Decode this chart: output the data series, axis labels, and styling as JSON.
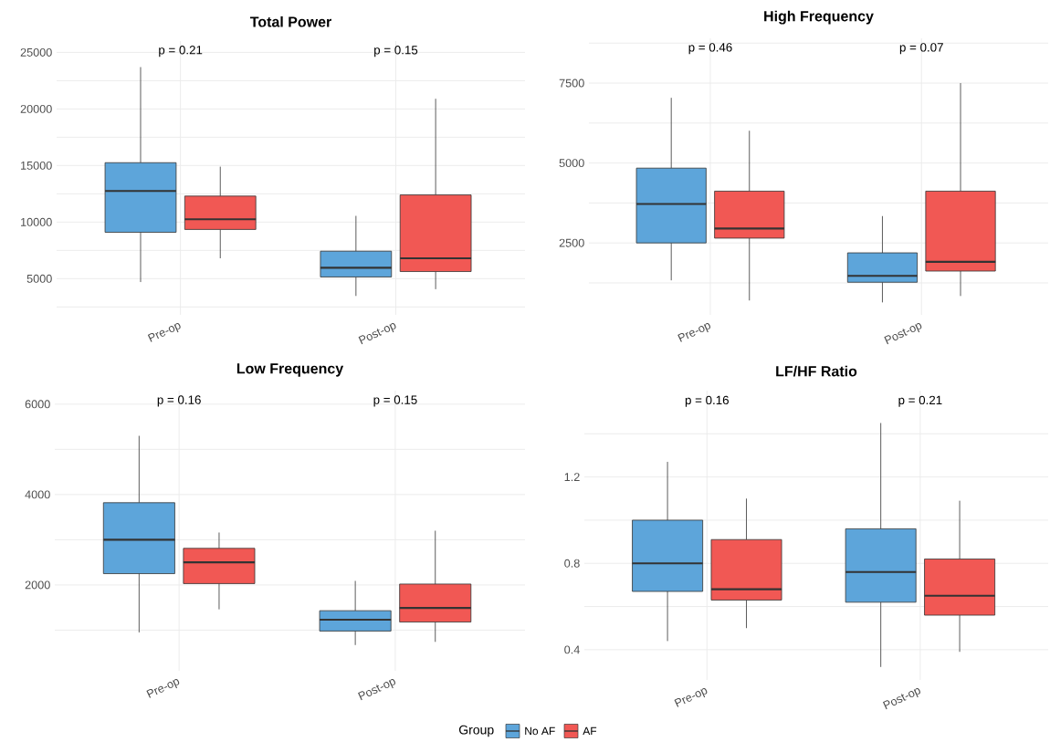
{
  "chart_data": [
    {
      "type": "box",
      "title": "Total Power",
      "categories": [
        "Pre-op",
        "Post-op"
      ],
      "ylim": [
        1800,
        26000
      ],
      "yticks": [
        {
          "value": 2500,
          "label": null
        },
        5000,
        {
          "value": 7500,
          "label": null
        },
        10000,
        {
          "value": 12500,
          "label": null
        },
        15000,
        {
          "value": 17500,
          "label": null
        },
        20000,
        {
          "value": 22500,
          "label": null
        },
        25000
      ],
      "grid": true,
      "legend": "bottom",
      "legend_title": "Group",
      "series": [
        {
          "name": "No AF",
          "color": "#5da5da",
          "boxes": [
            {
              "low": 4700,
              "q1": 9100,
              "median": 12750,
              "q3": 15250,
              "high": 23700
            },
            {
              "low": 3470,
              "q1": 5150,
              "median": 5960,
              "q3": 7430,
              "high": 10550
            }
          ]
        },
        {
          "name": "AF",
          "color": "#f15854",
          "boxes": [
            {
              "low": 6800,
              "q1": 9350,
              "median": 10250,
              "q3": 12300,
              "high": 14900
            },
            {
              "low": 4070,
              "q1": 5630,
              "median": 6800,
              "q3": 12400,
              "high": 20900
            }
          ]
        }
      ],
      "annotations": [
        "p = 0.21",
        "p = 0.15"
      ]
    },
    {
      "type": "box",
      "title": "High Frequency",
      "categories": [
        "Pre-op",
        "Post-op"
      ],
      "ylim": [
        250,
        8900
      ],
      "yticks": [
        {
          "value": 1250,
          "label": null
        },
        2500,
        {
          "value": 3750,
          "label": null
        },
        5000,
        {
          "value": 6250,
          "label": null
        },
        7500,
        {
          "value": 8750,
          "label": null
        }
      ],
      "grid": true,
      "series": [
        {
          "color": "#5da5da",
          "boxes": [
            {
              "low": 1330,
              "q1": 2500,
              "median": 3720,
              "q3": 4840,
              "high": 7040
            },
            {
              "low": 640,
              "q1": 1270,
              "median": 1470,
              "q3": 2190,
              "high": 3340
            }
          ]
        },
        {
          "color": "#f15854",
          "boxes": [
            {
              "low": 700,
              "q1": 2650,
              "median": 2950,
              "q3": 4120,
              "high": 6010
            },
            {
              "low": 840,
              "q1": 1620,
              "median": 1910,
              "q3": 4120,
              "high": 7500
            }
          ]
        }
      ],
      "annotations": [
        "p = 0.46",
        "p = 0.07"
      ]
    },
    {
      "type": "box",
      "title": "Low Frequency",
      "categories": [
        "Pre-op",
        "Post-op"
      ],
      "ylim": [
        100,
        6300
      ],
      "yticks": [
        {
          "value": 1000,
          "label": null
        },
        2000,
        {
          "value": 3000,
          "label": null
        },
        4000,
        {
          "value": 5000,
          "label": null
        },
        6000
      ],
      "grid": true,
      "series": [
        {
          "color": "#5da5da",
          "boxes": [
            {
              "low": 950,
              "q1": 2250,
              "median": 3000,
              "q3": 3820,
              "high": 5300
            },
            {
              "low": 670,
              "q1": 980,
              "median": 1230,
              "q3": 1430,
              "high": 2090
            }
          ]
        },
        {
          "color": "#f15854",
          "boxes": [
            {
              "low": 1460,
              "q1": 2030,
              "median": 2500,
              "q3": 2810,
              "high": 3160
            },
            {
              "low": 740,
              "q1": 1180,
              "median": 1490,
              "q3": 2020,
              "high": 3200
            }
          ]
        }
      ],
      "annotations": [
        "p = 0.16",
        "p = 0.15"
      ]
    },
    {
      "type": "box",
      "title": "LF/HF Ratio",
      "categories": [
        "Pre-op",
        "Post-op"
      ],
      "ylim": [
        0.26,
        1.6
      ],
      "yticks": [
        0.4,
        {
          "value": 0.6,
          "label": null
        },
        0.8,
        {
          "value": 1.0,
          "label": null
        },
        1.2,
        {
          "value": 1.4,
          "label": null
        }
      ],
      "grid": true,
      "series": [
        {
          "color": "#5da5da",
          "boxes": [
            {
              "low": 0.44,
              "q1": 0.67,
              "median": 0.8,
              "q3": 1.0,
              "high": 1.27
            },
            {
              "low": 0.32,
              "q1": 0.62,
              "median": 0.76,
              "q3": 0.96,
              "high": 1.45
            }
          ]
        },
        {
          "color": "#f15854",
          "boxes": [
            {
              "low": 0.5,
              "q1": 0.63,
              "median": 0.68,
              "q3": 0.91,
              "high": 1.1
            },
            {
              "low": 0.39,
              "q1": 0.56,
              "median": 0.65,
              "q3": 0.82,
              "high": 1.09
            }
          ]
        }
      ],
      "annotations": [
        "p = 0.16",
        "p = 0.21"
      ]
    }
  ]
}
